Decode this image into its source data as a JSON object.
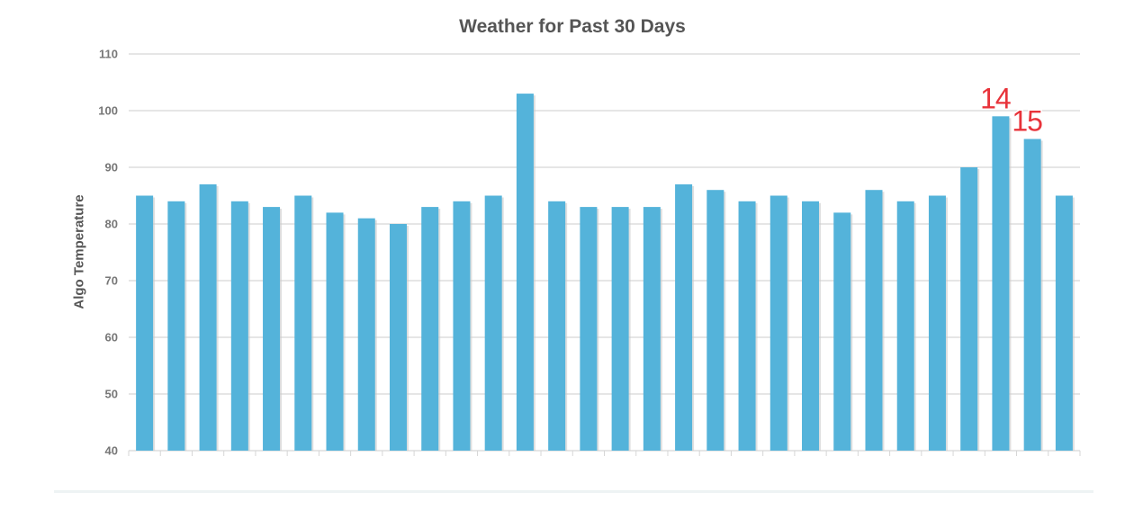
{
  "chart_data": {
    "type": "bar",
    "title": "Weather for Past 30 Days",
    "ylabel": "Algo Temperature",
    "xlabel": "",
    "ylim": [
      40,
      110
    ],
    "yticks": [
      40,
      50,
      60,
      70,
      80,
      90,
      100,
      110
    ],
    "grid": true,
    "values": [
      85,
      84,
      87,
      84,
      83,
      85,
      82,
      81,
      80,
      83,
      84,
      85,
      103,
      84,
      83,
      83,
      83,
      87,
      86,
      84,
      85,
      84,
      82,
      86,
      84,
      85,
      90,
      99,
      95,
      85
    ],
    "annotations": [
      {
        "index": 27,
        "text": "14"
      },
      {
        "index": 28,
        "text": "15"
      }
    ],
    "colors": {
      "bar": "#54b3da",
      "bar_shadow": "#c9c9c9",
      "grid": "#d6d6d6",
      "tick_text": "#777777",
      "annotation": "#e8333a",
      "annotation_outline": "#ffffff"
    }
  }
}
